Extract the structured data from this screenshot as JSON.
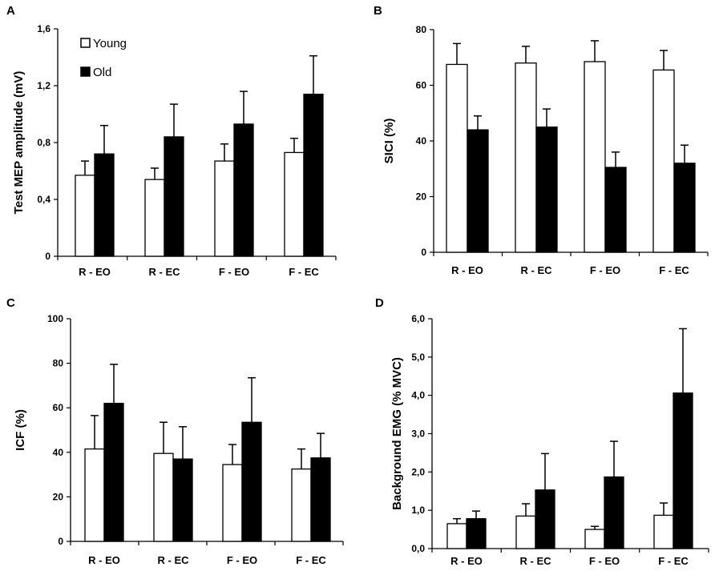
{
  "legend": {
    "young": "Young",
    "old": "Old"
  },
  "colors": {
    "young": "#ffffff",
    "old": "#000000",
    "outline": "#000000"
  },
  "chart_data": [
    {
      "panel": "A",
      "type": "bar",
      "ylabel": "Test MEP amplitude  (mV)",
      "categories": [
        "R - EO",
        "R - EC",
        "F - EO",
        "F - EC"
      ],
      "ylim": [
        0,
        1.6
      ],
      "yticks": [
        0,
        0.4,
        0.8,
        1.2,
        1.6
      ],
      "ytick_labels": [
        "0",
        "0,4",
        "0,8",
        "1,2",
        "1,6"
      ],
      "series": [
        {
          "name": "Young",
          "values": [
            0.57,
            0.54,
            0.67,
            0.73
          ],
          "errors": [
            0.1,
            0.08,
            0.12,
            0.1
          ]
        },
        {
          "name": "Old",
          "values": [
            0.72,
            0.84,
            0.93,
            1.14
          ],
          "errors": [
            0.2,
            0.23,
            0.23,
            0.27
          ]
        }
      ],
      "legend_position": "top-left"
    },
    {
      "panel": "B",
      "type": "bar",
      "ylabel": "SICI (%)",
      "categories": [
        "R - EO",
        "R - EC",
        "F - EO",
        "F - EC"
      ],
      "ylim": [
        0,
        80
      ],
      "yticks": [
        0,
        20,
        40,
        60,
        80
      ],
      "ytick_labels": [
        "0",
        "20",
        "40",
        "60",
        "80"
      ],
      "series": [
        {
          "name": "Young",
          "values": [
            67.5,
            68,
            68.5,
            65.5
          ],
          "errors": [
            7.5,
            6,
            7.5,
            7
          ]
        },
        {
          "name": "Old",
          "values": [
            44,
            45,
            30.5,
            32
          ],
          "errors": [
            5,
            6.5,
            5.5,
            6.5
          ]
        }
      ]
    },
    {
      "panel": "C",
      "type": "bar",
      "ylabel": "ICF (%)",
      "categories": [
        "R - EO",
        "R - EC",
        "F - EO",
        "F - EC"
      ],
      "ylim": [
        0,
        100
      ],
      "yticks": [
        0,
        20,
        40,
        60,
        80,
        100
      ],
      "ytick_labels": [
        "0",
        "20",
        "40",
        "60",
        "80",
        "100"
      ],
      "series": [
        {
          "name": "Young",
          "values": [
            41.5,
            39.5,
            34.5,
            32.5
          ],
          "errors": [
            15,
            14,
            9,
            9
          ]
        },
        {
          "name": "Old",
          "values": [
            62,
            37,
            53.5,
            37.5
          ],
          "errors": [
            17.5,
            14.5,
            20,
            11
          ]
        }
      ]
    },
    {
      "panel": "D",
      "type": "bar",
      "ylabel": "Background EMG (% MVC)",
      "categories": [
        "R - EO",
        "R - EC",
        "F - EO",
        "F - EC"
      ],
      "ylim": [
        0,
        6
      ],
      "yticks": [
        0,
        1,
        2,
        3,
        4,
        5,
        6
      ],
      "ytick_labels": [
        "0,0",
        "1,0",
        "2,0",
        "3,0",
        "4,0",
        "5,0",
        "6,0"
      ],
      "series": [
        {
          "name": "Young",
          "values": [
            0.65,
            0.85,
            0.5,
            0.87
          ],
          "errors": [
            0.13,
            0.32,
            0.08,
            0.32
          ]
        },
        {
          "name": "Old",
          "values": [
            0.78,
            1.53,
            1.87,
            4.06
          ],
          "errors": [
            0.2,
            0.95,
            0.93,
            1.68
          ]
        }
      ]
    }
  ]
}
